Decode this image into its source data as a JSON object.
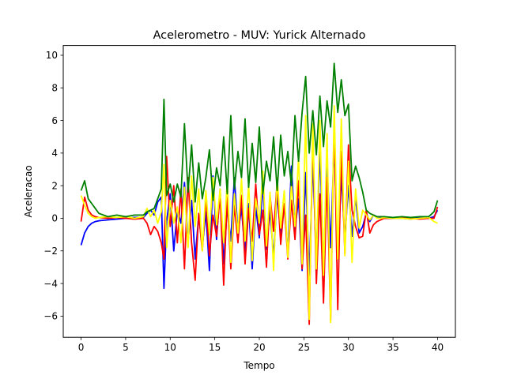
{
  "chart_data": {
    "type": "line",
    "title": "Acelerometro - MUV: Yurick Alternado",
    "xlabel": "Tempo",
    "ylabel": "Aceleracao",
    "xlim": [
      -2,
      42
    ],
    "ylim": [
      -7.3,
      10.6
    ],
    "xticks": [
      0,
      5,
      10,
      15,
      20,
      25,
      30,
      35,
      40
    ],
    "yticks": [
      -6,
      -4,
      -2,
      0,
      2,
      4,
      6,
      8,
      10
    ],
    "grid": false,
    "legend": "none",
    "series": [
      {
        "color": "#0000ff",
        "x": [
          0,
          0.4,
          0.8,
          1.2,
          1.6,
          2,
          3,
          4,
          5,
          6,
          7,
          7.4,
          7.8,
          8.2,
          8.6,
          9,
          9.3,
          9.6,
          10,
          10.4,
          10.8,
          11.2,
          11.6,
          12,
          12.4,
          12.8,
          13.2,
          13.6,
          14,
          14.4,
          14.8,
          15.2,
          15.6,
          16,
          16.4,
          16.8,
          17.2,
          17.6,
          18,
          18.4,
          18.8,
          19.2,
          19.6,
          20,
          20.4,
          20.8,
          21.2,
          21.6,
          22,
          22.4,
          22.8,
          23.2,
          23.6,
          24,
          24.4,
          24.8,
          25.2,
          25.6,
          26,
          26.4,
          26.8,
          27.2,
          27.6,
          28,
          28.4,
          28.8,
          29.2,
          29.6,
          30,
          30.4,
          30.8,
          31.2,
          31.6,
          32,
          32.4,
          32.8,
          33.2,
          33.6,
          34,
          35,
          36,
          37,
          38,
          39,
          39.6,
          40
        ],
        "y": [
          -1.65,
          -0.9,
          -0.5,
          -0.3,
          -0.2,
          -0.15,
          -0.1,
          -0.05,
          0,
          0.05,
          0.05,
          0.3,
          0.5,
          0.2,
          1,
          1.3,
          -4.3,
          -0.2,
          1.5,
          -2,
          0.5,
          -0.3,
          2.2,
          -1.5,
          1.1,
          -2.5,
          0.2,
          -1.8,
          0.4,
          -3.2,
          2.6,
          -1.3,
          1.8,
          -2.8,
          0.7,
          -1.4,
          2.5,
          -0.9,
          0.6,
          -2.1,
          0.9,
          -3.1,
          0.7,
          -1.2,
          2.1,
          -1.9,
          0.5,
          -2.4,
          1.5,
          -1,
          0.8,
          -2.1,
          3.2,
          -0.7,
          1.2,
          -3.2,
          2.8,
          -3.5,
          3.5,
          -2.5,
          4.2,
          -3,
          3.3,
          -1.8,
          4.6,
          -2.4,
          2.6,
          -1.2,
          2,
          -1.1,
          1.3,
          -0.9,
          -0.5,
          0.3,
          -0.2,
          0.2,
          0.1,
          0.05,
          0,
          0,
          0,
          -0.05,
          0.05,
          0,
          0.1,
          0.5
        ]
      },
      {
        "color": "#ff0000",
        "x": [
          0,
          0.4,
          0.8,
          1.2,
          1.6,
          2,
          3,
          4,
          5,
          6,
          7,
          7.4,
          7.8,
          8.2,
          8.6,
          9,
          9.3,
          9.6,
          10,
          10.4,
          10.8,
          11.2,
          11.6,
          12,
          12.4,
          12.8,
          13.2,
          13.6,
          14,
          14.4,
          14.8,
          15.2,
          15.6,
          16,
          16.4,
          16.8,
          17.2,
          17.6,
          18,
          18.4,
          18.8,
          19.2,
          19.6,
          20,
          20.4,
          20.8,
          21.2,
          21.6,
          22,
          22.4,
          22.8,
          23.2,
          23.6,
          24,
          24.4,
          24.8,
          25.2,
          25.6,
          26,
          26.4,
          26.8,
          27.2,
          27.6,
          28,
          28.4,
          28.8,
          29.2,
          29.6,
          30,
          30.4,
          30.8,
          31.2,
          31.6,
          32,
          32.4,
          32.8,
          33.2,
          33.6,
          34,
          35,
          36,
          37,
          38,
          39,
          39.6,
          40
        ],
        "y": [
          -0.2,
          1.3,
          0.5,
          0.2,
          0.1,
          0.05,
          0,
          0.05,
          0,
          -0.05,
          0,
          -0.3,
          -1,
          -0.5,
          -0.8,
          -1.5,
          -2.5,
          3.8,
          -0.5,
          2,
          -1.5,
          1.8,
          -3.1,
          2.5,
          -1.5,
          -3.8,
          0.3,
          -2,
          1.2,
          -2.3,
          0.2,
          -1.1,
          1.5,
          -4.1,
          1.3,
          -3.1,
          0.8,
          -1.5,
          1.4,
          -2.8,
          0.6,
          -1.4,
          2.1,
          -1,
          0.5,
          -3,
          1.4,
          -0.8,
          2.2,
          -1.6,
          0.9,
          -2.5,
          1.1,
          -1.3,
          2.3,
          -3.1,
          0.2,
          -6.5,
          5.5,
          -4,
          1.5,
          -5.2,
          2.5,
          -6.3,
          6.1,
          -5.6,
          4.1,
          -2.2,
          4.5,
          0.5,
          -0.5,
          -1.2,
          -1.1,
          0.5,
          -0.9,
          -0.4,
          -0.2,
          -0.1,
          0,
          0,
          0.05,
          0,
          -0.05,
          0,
          0,
          0.7
        ]
      },
      {
        "color": "#ffff00",
        "x": [
          0,
          0.4,
          0.8,
          1.2,
          1.6,
          2,
          3,
          4,
          5,
          6,
          7,
          7.4,
          7.8,
          8.2,
          8.6,
          9,
          9.3,
          9.6,
          10,
          10.4,
          10.8,
          11.2,
          11.6,
          12,
          12.4,
          12.8,
          13.2,
          13.6,
          14,
          14.4,
          14.8,
          15.2,
          15.6,
          16,
          16.4,
          16.8,
          17.2,
          17.6,
          18,
          18.4,
          18.8,
          19.2,
          19.6,
          20,
          20.4,
          20.8,
          21.2,
          21.6,
          22,
          22.4,
          22.8,
          23.2,
          23.6,
          24,
          24.4,
          24.8,
          25.2,
          25.6,
          26,
          26.4,
          26.8,
          27.2,
          27.6,
          28,
          28.4,
          28.8,
          29.2,
          29.6,
          30,
          30.4,
          30.8,
          31.2,
          31.6,
          32,
          32.4,
          32.8,
          33.2,
          33.6,
          34,
          35,
          36,
          37,
          38,
          39,
          39.6,
          40
        ],
        "y": [
          1.4,
          0.8,
          0.3,
          0.1,
          0,
          0.05,
          0.1,
          0.05,
          0.1,
          0,
          0.1,
          0.6,
          0.1,
          0.5,
          -0.3,
          0.4,
          3.3,
          -1.8,
          1.1,
          -0.3,
          0.7,
          -1.5,
          1.9,
          -1.8,
          2.6,
          -0.5,
          1.8,
          -2,
          1.7,
          -1,
          2.5,
          -0.4,
          1.8,
          -1.5,
          2.3,
          -2.7,
          1.5,
          -0.9,
          2.4,
          -1.4,
          2.1,
          -2.6,
          1.2,
          -0.3,
          2.9,
          -1.7,
          1.6,
          -3.2,
          2.5,
          -0.6,
          1.7,
          -2.4,
          2.2,
          -0.5,
          3.8,
          -2.8,
          6.3,
          -6.2,
          5.8,
          -3.1,
          6,
          -3.5,
          5.2,
          -6.4,
          6.9,
          -2.5,
          6.1,
          -2.3,
          3.5,
          -2.7,
          1.8,
          -0.6,
          0.5,
          0.2,
          -0.1,
          0.2,
          0,
          0,
          0.05,
          0,
          0,
          -0.05,
          0,
          0.05,
          -0.2,
          -0.3
        ]
      },
      {
        "color": "#008000",
        "x": [
          0,
          0.4,
          0.8,
          1.2,
          1.6,
          2,
          3,
          4,
          5,
          6,
          7,
          7.4,
          7.8,
          8.2,
          8.6,
          9,
          9.3,
          9.6,
          10,
          10.4,
          10.8,
          11.2,
          11.6,
          12,
          12.4,
          12.8,
          13.2,
          13.6,
          14,
          14.4,
          14.8,
          15.2,
          15.6,
          16,
          16.4,
          16.8,
          17.2,
          17.6,
          18,
          18.4,
          18.8,
          19.2,
          19.6,
          20,
          20.4,
          20.8,
          21.2,
          21.6,
          22,
          22.4,
          22.8,
          23.2,
          23.6,
          24,
          24.4,
          24.8,
          25.2,
          25.6,
          26,
          26.4,
          26.8,
          27.2,
          27.6,
          28,
          28.4,
          28.8,
          29.2,
          29.6,
          30,
          30.4,
          30.8,
          31.2,
          31.6,
          32,
          32.4,
          32.8,
          33.2,
          33.6,
          34,
          35,
          36,
          37,
          38,
          39,
          39.6,
          40
        ],
        "y": [
          1.7,
          2.3,
          1.2,
          0.9,
          0.6,
          0.3,
          0.1,
          0.2,
          0.1,
          0.2,
          0.2,
          0.4,
          0.5,
          0.6,
          1.2,
          1.8,
          7.3,
          1.4,
          2.1,
          1,
          2.1,
          1.3,
          5.8,
          1.6,
          4.5,
          1,
          3.4,
          1.2,
          2.5,
          4.2,
          1.1,
          3.1,
          2,
          5,
          1.5,
          6.3,
          1.8,
          4.1,
          2.5,
          6.1,
          1.9,
          4.6,
          2.2,
          5.6,
          1.5,
          3.5,
          2.3,
          5,
          1.7,
          5.1,
          2.6,
          4.1,
          2,
          6.3,
          3.5,
          6.5,
          8.7,
          4,
          6.6,
          3.9,
          7.5,
          4.4,
          7.2,
          5.6,
          9.5,
          6.5,
          8.5,
          6.3,
          7,
          2.3,
          3.2,
          2.5,
          1.6,
          0.5,
          0.3,
          0.2,
          0.1,
          0.1,
          0.1,
          0.05,
          0.1,
          0.05,
          0.1,
          0.1,
          0.4,
          1.1
        ]
      }
    ]
  }
}
